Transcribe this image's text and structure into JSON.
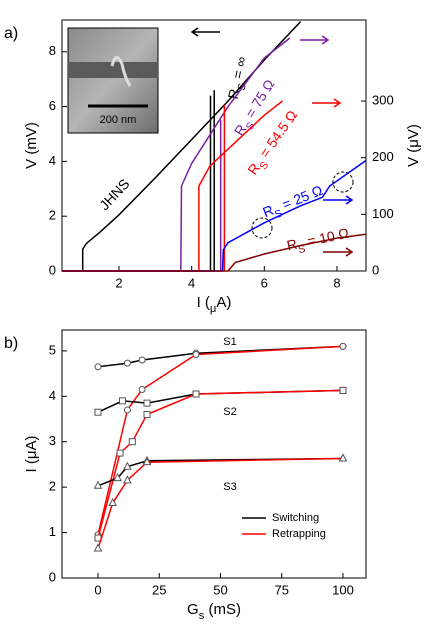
{
  "chart_data": [
    {
      "type": "line",
      "panel_label": "a)",
      "xlabel": [
        "I (",
        "μ",
        "A)"
      ],
      "ylabel": "V (mV)",
      "y2label": "V (μV)",
      "xlim": [
        0.43,
        8.8
      ],
      "xticks": [
        2,
        4,
        6,
        8
      ],
      "ylim": [
        0,
        9.16
      ],
      "yticks": [
        0,
        2,
        4,
        6,
        8
      ],
      "y2lim": [
        0,
        443
      ],
      "y2ticks": [
        0,
        100,
        200,
        300
      ],
      "inset_scale": "200 nm",
      "series": [
        {
          "label": [
            "JHNS"
          ],
          "color": "#000000",
          "axis": "y",
          "x": [
            1.0,
            1.0,
            1.1,
            1.5,
            2.0,
            3.0,
            4.0,
            5.0,
            6.0,
            7.0
          ],
          "values": [
            0,
            0.8,
            1.0,
            1.45,
            2.05,
            3.4,
            4.8,
            6.2,
            7.7,
            9.1
          ]
        },
        {
          "label": [
            "R",
            "S",
            " = ∞"
          ],
          "color": "#000000",
          "axis": "y",
          "x": [
            0.43,
            4.62,
            4.62,
            null,
            4.52,
            4.52
          ],
          "values": [
            0,
            0,
            6.6,
            null,
            0,
            6.4
          ]
        },
        {
          "label": [
            "R",
            "S",
            " = 75 Ω"
          ],
          "color": "#7b1fa2",
          "axis": "y2",
          "x": [
            0.43,
            3.7,
            3.72,
            4.0,
            5.0,
            6.0,
            6.7,
            null,
            4.8,
            4.8
          ],
          "values": [
            0,
            0,
            150,
            190,
            290,
            376,
            411,
            null,
            0,
            266
          ]
        },
        {
          "label": [
            "R",
            "S",
            " = 54.5 Ω"
          ],
          "color": "#ff0000",
          "axis": "y2",
          "x": [
            0.43,
            4.2,
            4.2,
            4.5,
            5.0,
            6.0,
            6.5,
            null,
            4.9,
            4.9
          ],
          "values": [
            0,
            0,
            150,
            185,
            215,
            275,
            300,
            null,
            0,
            293
          ]
        },
        {
          "label": [
            "R",
            "S",
            " = 25 Ω"
          ],
          "color": "#0000ff",
          "axis": "y2",
          "x": [
            0.43,
            4.85,
            4.87,
            5.0,
            6.0,
            7.0,
            7.6,
            7.8,
            8.8
          ],
          "values": [
            0,
            0,
            37,
            50,
            85,
            115,
            130,
            150,
            195
          ]
        },
        {
          "label": [
            "R",
            "S",
            " = 10 Ω"
          ],
          "color": "#800000",
          "axis": "y2",
          "x": [
            0.43,
            5.0,
            5.2,
            6.0,
            7.0,
            8.0,
            8.8
          ],
          "values": [
            0,
            0,
            15,
            30,
            45,
            58,
            65
          ]
        }
      ]
    },
    {
      "type": "line",
      "panel_label": "b)",
      "xlabel": [
        "G",
        "s",
        " (mS)"
      ],
      "ylabel": "I (μA)",
      "xlim": [
        -14.7,
        109.4
      ],
      "xticks": [
        0,
        25,
        50,
        75,
        100
      ],
      "ylim": [
        0,
        5.46
      ],
      "yticks": [
        0,
        1,
        2,
        3,
        4,
        5
      ],
      "legend": [
        {
          "name": "Switching",
          "color": "#000000"
        },
        {
          "name": "Retrapping",
          "color": "#ff0000"
        }
      ],
      "series": [
        {
          "label": "S1",
          "color": "#000000",
          "marker": "circle",
          "x": [
            0,
            12,
            18,
            40,
            100
          ],
          "values": [
            4.65,
            4.73,
            4.8,
            4.95,
            5.1
          ]
        },
        {
          "color": "#ff0000",
          "marker": "circle",
          "x": [
            0,
            12,
            18,
            40,
            100
          ],
          "values": [
            0.95,
            3.7,
            4.15,
            4.92,
            5.1
          ]
        },
        {
          "label": "S2",
          "color": "#000000",
          "marker": "square",
          "x": [
            0,
            10,
            20,
            40,
            100
          ],
          "values": [
            3.65,
            3.9,
            3.85,
            4.05,
            4.13
          ]
        },
        {
          "color": "#ff0000",
          "marker": "square",
          "x": [
            0,
            9,
            14,
            20,
            40,
            100
          ],
          "values": [
            0.88,
            2.75,
            3.0,
            3.6,
            4.05,
            4.13
          ]
        },
        {
          "label": "S3",
          "color": "#000000",
          "marker": "triangle",
          "x": [
            0,
            8,
            12,
            20,
            100
          ],
          "values": [
            2.03,
            2.2,
            2.45,
            2.58,
            2.63
          ]
        },
        {
          "color": "#ff0000",
          "marker": "triangle",
          "x": [
            0,
            6,
            12,
            20,
            100
          ],
          "values": [
            0.65,
            1.65,
            2.15,
            2.55,
            2.63
          ]
        }
      ]
    }
  ]
}
